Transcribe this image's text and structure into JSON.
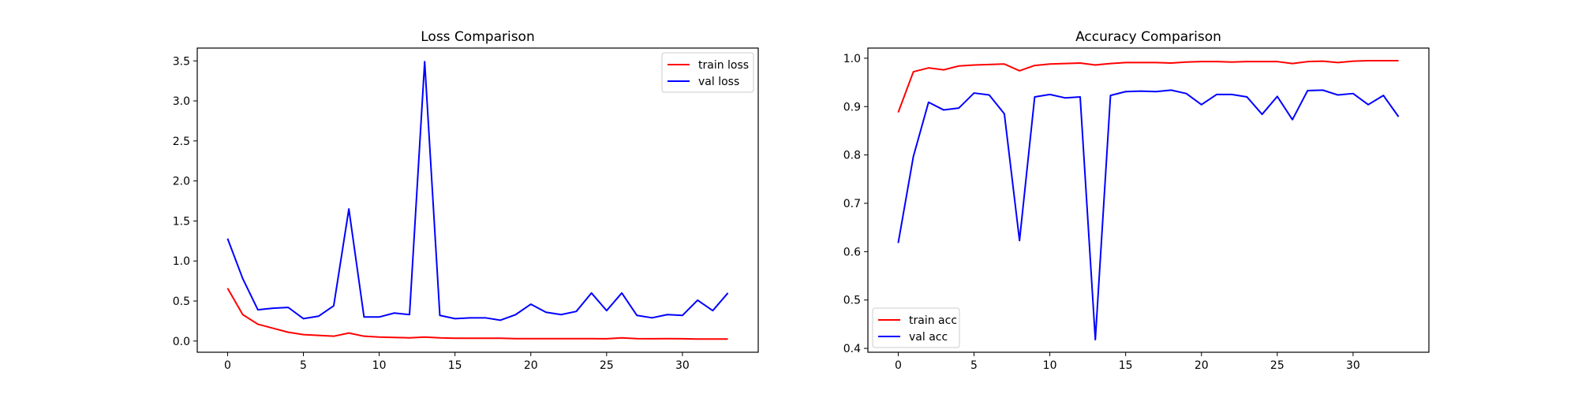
{
  "chart_data": [
    {
      "type": "line",
      "title": "Loss Comparison",
      "xlabel": "",
      "ylabel": "",
      "xlim": [
        -2.0,
        35.0
      ],
      "ylim": [
        -0.14,
        3.66
      ],
      "xticks": [
        0,
        5,
        10,
        15,
        20,
        25,
        30
      ],
      "yticks": [
        0.0,
        0.5,
        1.0,
        1.5,
        2.0,
        2.5,
        3.0,
        3.5
      ],
      "legend_position": "top-right",
      "x": [
        0,
        1,
        2,
        3,
        4,
        5,
        6,
        7,
        8,
        9,
        10,
        11,
        12,
        13,
        14,
        15,
        16,
        17,
        18,
        19,
        20,
        21,
        22,
        23,
        24,
        25,
        26,
        27,
        28,
        29,
        30,
        31,
        32,
        33
      ],
      "series": [
        {
          "name": "train loss",
          "color": "#ff0000",
          "values": [
            0.66,
            0.33,
            0.21,
            0.16,
            0.11,
            0.08,
            0.07,
            0.06,
            0.1,
            0.06,
            0.05,
            0.045,
            0.04,
            0.05,
            0.04,
            0.035,
            0.035,
            0.035,
            0.035,
            0.03,
            0.03,
            0.03,
            0.03,
            0.03,
            0.03,
            0.028,
            0.04,
            0.03,
            0.028,
            0.03,
            0.028,
            0.025,
            0.025,
            0.025
          ]
        },
        {
          "name": "val loss",
          "color": "#0000ff",
          "values": [
            1.28,
            0.78,
            0.39,
            0.41,
            0.42,
            0.28,
            0.31,
            0.44,
            1.65,
            0.3,
            0.3,
            0.35,
            0.33,
            3.49,
            0.32,
            0.28,
            0.29,
            0.29,
            0.26,
            0.33,
            0.46,
            0.36,
            0.33,
            0.37,
            0.6,
            0.38,
            0.6,
            0.32,
            0.29,
            0.33,
            0.32,
            0.51,
            0.38,
            0.6
          ]
        }
      ]
    },
    {
      "type": "line",
      "title": "Accuracy Comparison",
      "xlabel": "",
      "ylabel": "",
      "xlim": [
        -2.0,
        35.0
      ],
      "ylim": [
        0.392,
        1.021
      ],
      "xticks": [
        0,
        5,
        10,
        15,
        20,
        25,
        30
      ],
      "yticks": [
        0.4,
        0.5,
        0.6,
        0.7,
        0.8,
        0.9,
        1.0
      ],
      "legend_position": "bottom-left",
      "x": [
        0,
        1,
        2,
        3,
        4,
        5,
        6,
        7,
        8,
        9,
        10,
        11,
        12,
        13,
        14,
        15,
        16,
        17,
        18,
        19,
        20,
        21,
        22,
        23,
        24,
        25,
        26,
        27,
        28,
        29,
        30,
        31,
        32,
        33
      ],
      "series": [
        {
          "name": "train acc",
          "color": "#ff0000",
          "values": [
            0.888,
            0.972,
            0.98,
            0.976,
            0.984,
            0.986,
            0.987,
            0.988,
            0.974,
            0.985,
            0.988,
            0.989,
            0.99,
            0.986,
            0.989,
            0.991,
            0.991,
            0.991,
            0.99,
            0.992,
            0.993,
            0.993,
            0.992,
            0.993,
            0.993,
            0.993,
            0.989,
            0.993,
            0.994,
            0.991,
            0.994,
            0.995,
            0.995,
            0.995
          ]
        },
        {
          "name": "val acc",
          "color": "#0000ff",
          "values": [
            0.618,
            0.797,
            0.909,
            0.893,
            0.897,
            0.928,
            0.924,
            0.885,
            0.623,
            0.92,
            0.925,
            0.918,
            0.92,
            0.418,
            0.923,
            0.931,
            0.932,
            0.931,
            0.934,
            0.927,
            0.904,
            0.925,
            0.925,
            0.92,
            0.884,
            0.921,
            0.873,
            0.933,
            0.934,
            0.924,
            0.927,
            0.904,
            0.923,
            0.879
          ]
        }
      ]
    }
  ]
}
